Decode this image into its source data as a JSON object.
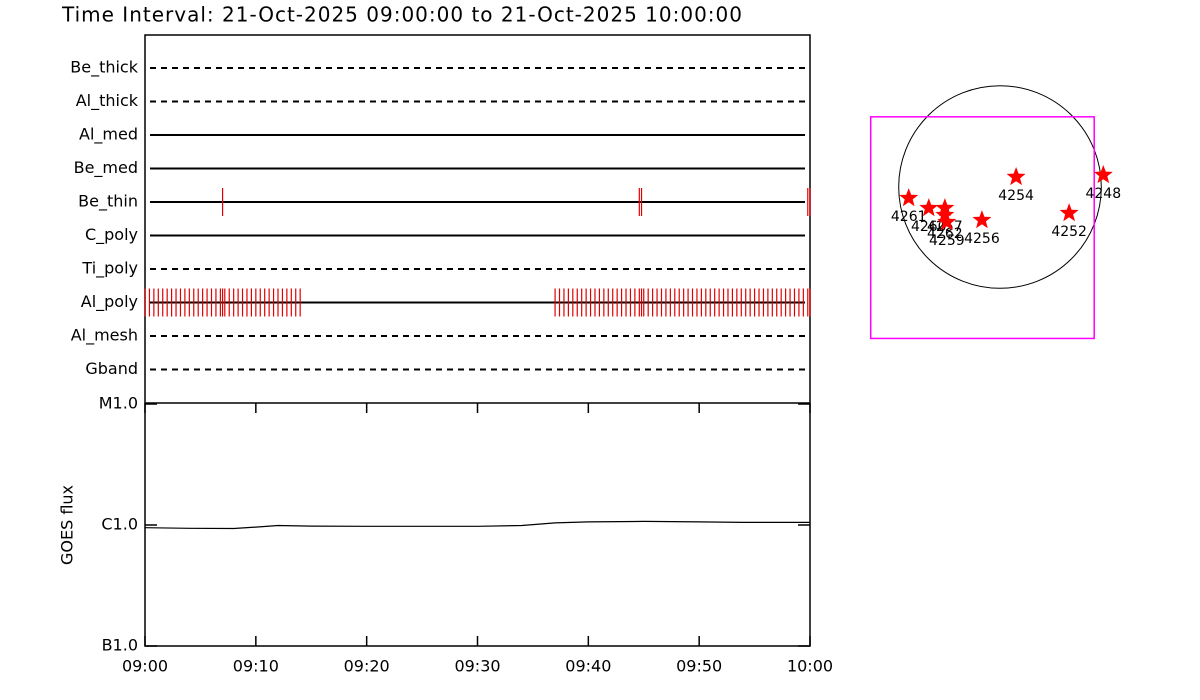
{
  "chart_data": [
    {
      "type": "timeline",
      "title": "Time Interval: 21-Oct-2025 09:00:00 to 21-Oct-2025 10:00:00",
      "xlim": [
        0,
        60
      ],
      "color": "#e00000",
      "rows": [
        {
          "name": "Be_thick",
          "style": "dashed",
          "times": []
        },
        {
          "name": "Al_thick",
          "style": "dashed",
          "times": []
        },
        {
          "name": "Al_med",
          "style": "solid",
          "times": []
        },
        {
          "name": "Be_med",
          "style": "solid",
          "times": []
        },
        {
          "name": "Be_thin",
          "style": "solid",
          "times": [
            7.0,
            44.6,
            44.8,
            59.8,
            60.0
          ]
        },
        {
          "name": "C_poly",
          "style": "solid",
          "times": []
        },
        {
          "name": "Ti_poly",
          "style": "dashed",
          "times": []
        },
        {
          "name": "Al_poly",
          "style": "solid",
          "times": [
            0.0,
            0.4,
            0.8,
            1.2,
            1.6,
            2.0,
            2.4,
            2.8,
            3.2,
            3.6,
            4.0,
            4.4,
            4.8,
            5.2,
            5.6,
            6.0,
            6.4,
            6.8,
            7.0,
            7.2,
            7.6,
            8.0,
            8.4,
            8.8,
            9.2,
            9.6,
            10.0,
            10.4,
            10.8,
            11.2,
            11.6,
            12.0,
            12.4,
            12.8,
            13.2,
            13.6,
            14.0,
            37.0,
            37.4,
            37.8,
            38.2,
            38.6,
            39.0,
            39.4,
            39.8,
            40.2,
            40.6,
            41.0,
            41.4,
            41.8,
            42.2,
            42.6,
            43.0,
            43.4,
            43.8,
            44.2,
            44.6,
            44.8,
            45.0,
            45.4,
            45.8,
            46.2,
            46.6,
            47.0,
            47.4,
            47.8,
            48.2,
            48.6,
            49.0,
            49.4,
            49.8,
            50.2,
            50.6,
            51.0,
            51.4,
            51.8,
            52.2,
            52.6,
            53.0,
            53.4,
            53.8,
            54.2,
            54.6,
            55.0,
            55.4,
            55.8,
            56.2,
            56.6,
            57.0,
            57.4,
            57.8,
            58.2,
            58.6,
            59.0,
            59.4,
            59.8,
            60.0
          ]
        },
        {
          "name": "Al_mesh",
          "style": "dashed",
          "times": []
        },
        {
          "name": "Gband",
          "style": "dashed",
          "times": []
        }
      ]
    },
    {
      "type": "line",
      "ylabel": "GOES flux",
      "log_y": true,
      "x": [
        0,
        4,
        8,
        10,
        12,
        15,
        20,
        30,
        34,
        37,
        40,
        45,
        50,
        54,
        60
      ],
      "values": [
        9.5e-07,
        9.4e-07,
        9.35e-07,
        9.6e-07,
        9.9e-07,
        9.8e-07,
        9.75e-07,
        9.75e-07,
        9.9e-07,
        1.04e-06,
        1.06e-06,
        1.07e-06,
        1.06e-06,
        1.05e-06,
        1.05e-06
      ],
      "color": "#000000",
      "xlim": [
        0,
        60
      ],
      "xticks": [
        {
          "value": 0,
          "label": "09:00"
        },
        {
          "value": 10,
          "label": "09:10"
        },
        {
          "value": 20,
          "label": "09:20"
        },
        {
          "value": 30,
          "label": "09:30"
        },
        {
          "value": 40,
          "label": "09:40"
        },
        {
          "value": 50,
          "label": "09:50"
        },
        {
          "value": 60,
          "label": "10:00"
        }
      ],
      "ylim": [
        1e-07,
        1e-05
      ],
      "yticks": [
        {
          "value": 1e-07,
          "label": "B1.0"
        },
        {
          "value": 1e-06,
          "label": "C1.0"
        },
        {
          "value": 1e-05,
          "label": "M1.0"
        }
      ]
    },
    {
      "type": "scatter",
      "xlim": [
        -1350,
        1350
      ],
      "ylim": [
        -1350,
        1350
      ],
      "solar_radius": 970,
      "fov": {
        "x": [
          -1238,
          902
        ],
        "y": [
          -1450,
          672
        ]
      },
      "color": "#ff0000",
      "labels": [
        "4261",
        "4260",
        "4257",
        "4262",
        "4259",
        "4256",
        "4254",
        "4252",
        "4248"
      ],
      "x": [
        -874,
        -682,
        -528,
        -528,
        -509,
        -173,
        154,
        662,
        989
      ],
      "y": [
        -106,
        -202,
        -202,
        -269,
        -336,
        -317,
        96,
        -250,
        115
      ]
    }
  ]
}
